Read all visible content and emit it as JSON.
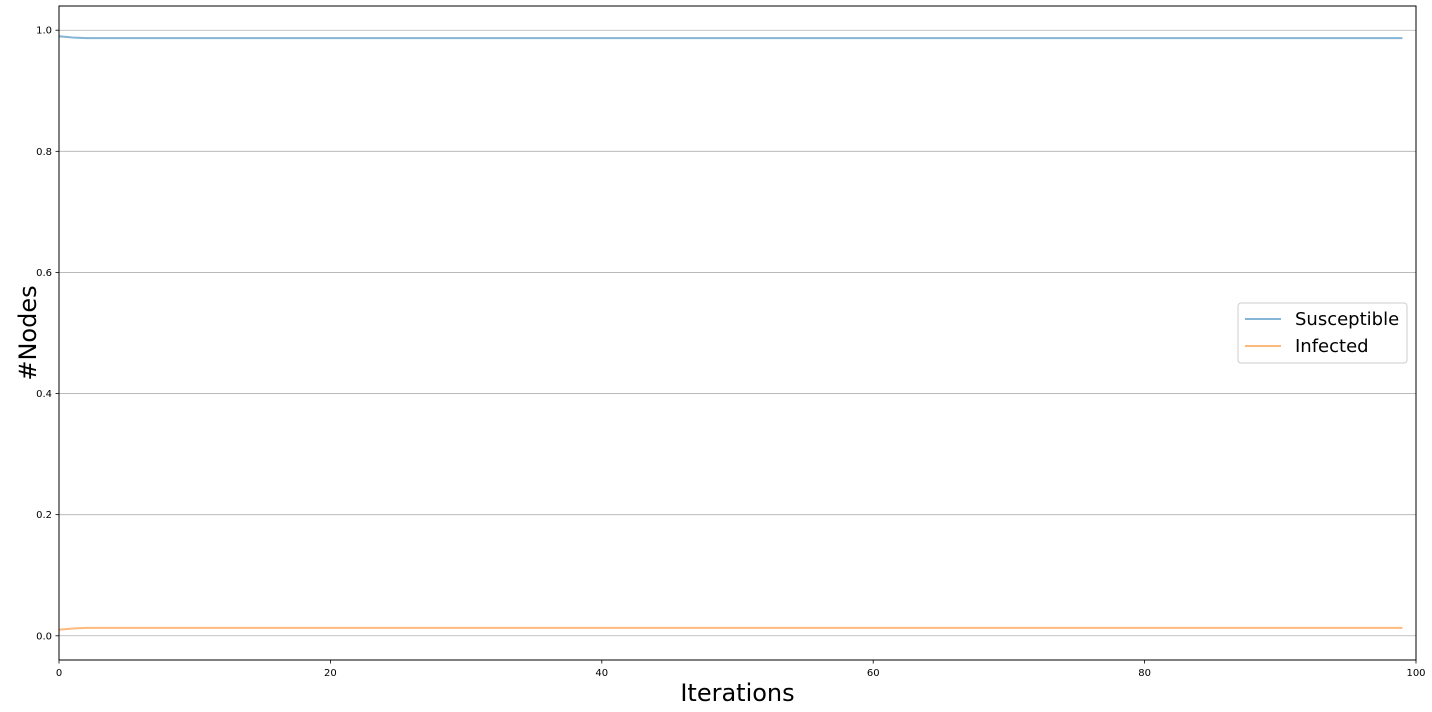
{
  "chart_data": {
    "type": "line",
    "xlabel": "Iterations",
    "ylabel": "#Nodes",
    "xlim": [
      0,
      100
    ],
    "ylim": [
      -0.04,
      1.04
    ],
    "x_ticks": [
      "0",
      "20",
      "40",
      "60",
      "80",
      "100"
    ],
    "y_ticks": [
      "0.0",
      "0.2",
      "0.4",
      "0.6",
      "0.8",
      "1.0"
    ],
    "grid": "horizontal",
    "legend_position": "center-right",
    "series": [
      {
        "name": "Susceptible",
        "color": "#1f77b4",
        "x": [
          0,
          1,
          2,
          3,
          5,
          10,
          20,
          30,
          40,
          50,
          60,
          70,
          80,
          90,
          99
        ],
        "values": [
          0.99,
          0.988,
          0.987,
          0.987,
          0.987,
          0.987,
          0.987,
          0.987,
          0.987,
          0.987,
          0.987,
          0.987,
          0.987,
          0.987,
          0.987
        ]
      },
      {
        "name": "Infected",
        "color": "#ff7f0e",
        "x": [
          0,
          1,
          2,
          3,
          5,
          10,
          20,
          30,
          40,
          50,
          60,
          70,
          80,
          90,
          99
        ],
        "values": [
          0.01,
          0.012,
          0.013,
          0.013,
          0.013,
          0.013,
          0.013,
          0.013,
          0.013,
          0.013,
          0.013,
          0.013,
          0.013,
          0.013,
          0.013
        ]
      }
    ]
  }
}
